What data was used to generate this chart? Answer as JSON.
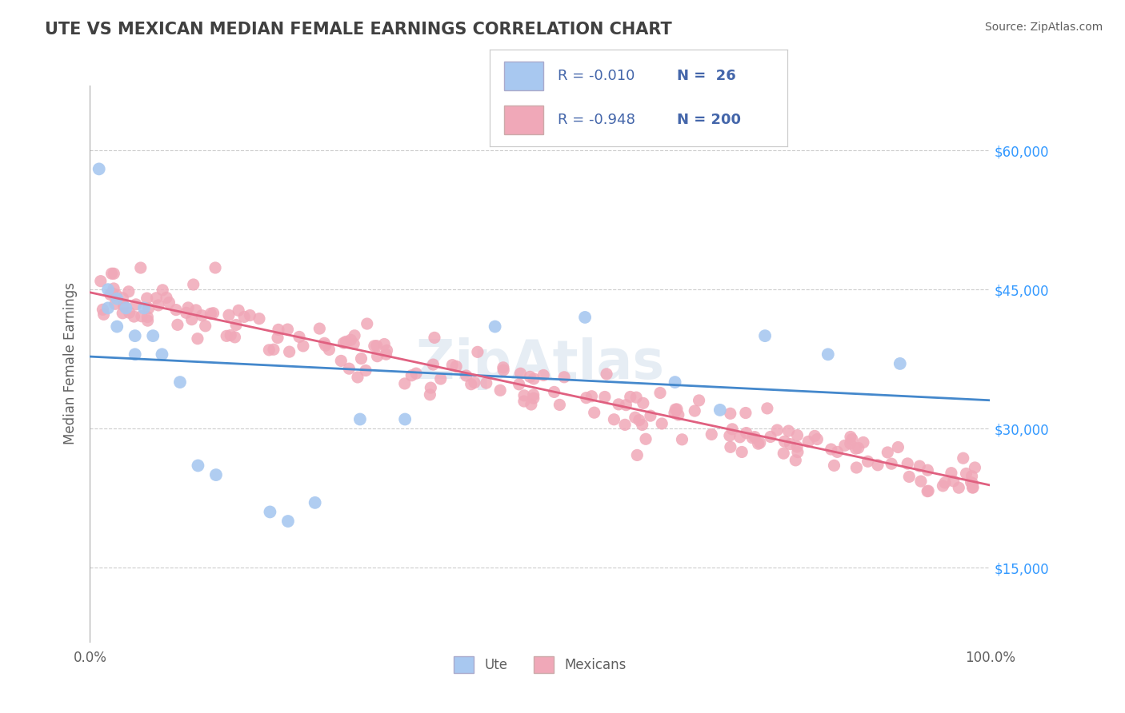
{
  "title": "UTE VS MEXICAN MEDIAN FEMALE EARNINGS CORRELATION CHART",
  "source": "Source: ZipAtlas.com",
  "ylabel": "Median Female Earnings",
  "yticks": [
    15000,
    30000,
    45000,
    60000
  ],
  "ytick_labels": [
    "$15,000",
    "$30,000",
    "$45,000",
    "$60,000"
  ],
  "xlim": [
    0.0,
    100.0
  ],
  "ylim": [
    7000,
    67000
  ],
  "legend_r1": "-0.010",
  "legend_n1": "26",
  "legend_r2": "-0.948",
  "legend_n2": "200",
  "ute_color": "#a8c8f0",
  "mexican_color": "#f0a8b8",
  "ute_line_color": "#4488cc",
  "mexican_line_color": "#e06080",
  "background_color": "#ffffff",
  "grid_color": "#cccccc",
  "title_color": "#404040",
  "legend_text_color": "#4466aa",
  "watermark": "ZipAtlas"
}
